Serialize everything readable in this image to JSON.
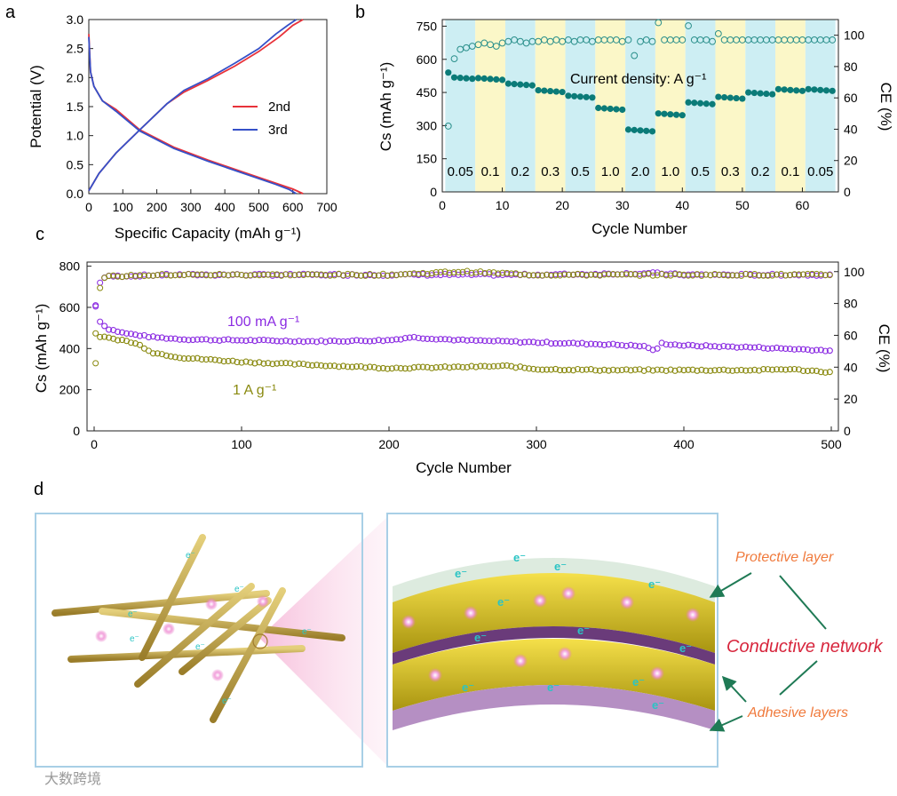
{
  "panels": {
    "a": {
      "letter": "a"
    },
    "b": {
      "letter": "b"
    },
    "c": {
      "letter": "c"
    },
    "d": {
      "letter": "d"
    }
  },
  "chart_data": [
    {
      "id": "a",
      "type": "line",
      "title": "",
      "xlabel": "Specific Capacity (mAh g⁻¹)",
      "ylabel": "Potential (V)",
      "xlim": [
        0,
        700
      ],
      "ylim": [
        0,
        3.0
      ],
      "xticks": [
        0,
        100,
        200,
        300,
        400,
        500,
        600,
        700
      ],
      "yticks": [
        0.0,
        0.5,
        1.0,
        1.5,
        2.0,
        2.5,
        3.0
      ],
      "legend": [
        "2nd",
        "3rd"
      ],
      "series": [
        {
          "name": "2nd",
          "color": "#e8323a",
          "discharge": {
            "x": [
              0,
              5,
              15,
              40,
              80,
              150,
              250,
              350,
              450,
              550,
              600,
              630
            ],
            "y": [
              2.75,
              2.1,
              1.85,
              1.6,
              1.45,
              1.1,
              0.8,
              0.58,
              0.38,
              0.18,
              0.08,
              0.0
            ]
          },
          "charge": {
            "x": [
              0,
              30,
              80,
              150,
              230,
              280,
              350,
              430,
              500,
              560,
              600,
              630
            ],
            "y": [
              0.05,
              0.35,
              0.7,
              1.1,
              1.55,
              1.75,
              1.95,
              2.2,
              2.45,
              2.7,
              2.9,
              3.0
            ]
          }
        },
        {
          "name": "3rd",
          "color": "#3550c8",
          "discharge": {
            "x": [
              0,
              5,
              15,
              40,
              80,
              150,
              250,
              350,
              450,
              550,
              590,
              610
            ],
            "y": [
              2.7,
              2.1,
              1.85,
              1.6,
              1.42,
              1.08,
              0.78,
              0.56,
              0.36,
              0.16,
              0.07,
              0.0
            ]
          },
          "charge": {
            "x": [
              0,
              30,
              80,
              150,
              230,
              280,
              350,
              430,
              500,
              550,
              585,
              610
            ],
            "y": [
              0.05,
              0.35,
              0.7,
              1.1,
              1.55,
              1.78,
              1.98,
              2.25,
              2.5,
              2.75,
              2.9,
              3.0
            ]
          }
        }
      ]
    },
    {
      "id": "b",
      "type": "scatter",
      "title": "",
      "xlabel": "Cycle Number",
      "ylabel_left": "Cs (mAh g⁻¹)",
      "ylabel_right": "CE (%)",
      "xlim": [
        0,
        66
      ],
      "ylim_left": [
        0,
        780
      ],
      "ylim_right": [
        0,
        110
      ],
      "xticks": [
        0,
        10,
        20,
        30,
        40,
        50,
        60
      ],
      "yticks_left": [
        0,
        150,
        300,
        450,
        600,
        750
      ],
      "yticks_right": [
        0,
        20,
        40,
        60,
        80,
        100
      ],
      "annotation": "Current density: A g⁻¹",
      "rate_labels": [
        "0.05",
        "0.1",
        "0.2",
        "0.3",
        "0.5",
        "1.0",
        "2.0",
        "1.0",
        "0.5",
        "0.3",
        "0.2",
        "0.1",
        "0.05"
      ],
      "capacity_levels": [
        520,
        515,
        490,
        460,
        435,
        380,
        282,
        355,
        405,
        430,
        450,
        465,
        465
      ],
      "first_capacity": 540,
      "ce_values": [
        42,
        85,
        91,
        92,
        93,
        94,
        95,
        94,
        93,
        95,
        96,
        97,
        96,
        95,
        96,
        96,
        97,
        96,
        97,
        96,
        97,
        96,
        97,
        97,
        96,
        97,
        97,
        97,
        97,
        96,
        97,
        87,
        96,
        97,
        96,
        108,
        97,
        97,
        97,
        97,
        106,
        97,
        97,
        97,
        96,
        101,
        97,
        97,
        97,
        97,
        97,
        97,
        97,
        97,
        97,
        97,
        97,
        97,
        97,
        97,
        97,
        97,
        97,
        97,
        97
      ],
      "series_colors": {
        "capacity": "#0b7b78",
        "ce": "#2a8f8b"
      },
      "band_colors": [
        "#cdeef3",
        "#fbf7c8"
      ]
    },
    {
      "id": "c",
      "type": "scatter",
      "title": "",
      "xlabel": "Cycle Number",
      "ylabel_left": "Cs (mAh g⁻¹)",
      "ylabel_right": "CE (%)",
      "xlim": [
        0,
        500
      ],
      "ylim_left": [
        0,
        820
      ],
      "ylim_right": [
        0,
        106
      ],
      "xticks": [
        0,
        100,
        200,
        300,
        400,
        500
      ],
      "yticks_left": [
        0,
        200,
        400,
        600,
        800
      ],
      "yticks_right": [
        0,
        20,
        40,
        60,
        80,
        100
      ],
      "series": [
        {
          "name": "100 mA g⁻¹",
          "color": "#8b2be2",
          "capacity": {
            "x": [
              1,
              2,
              5,
              10,
              20,
              40,
              60,
              100,
              150,
              200,
              215,
              250,
              300,
              350,
              375,
              380,
              385,
              400,
              450,
              500
            ],
            "y": [
              610,
              560,
              520,
              495,
              475,
              455,
              445,
              440,
              435,
              440,
              455,
              440,
              430,
              420,
              410,
              385,
              425,
              415,
              405,
              390
            ]
          },
          "ce": {
            "x": [
              1,
              3,
              6,
              10,
              50,
              100,
              200,
              300,
              380,
              400,
              500
            ],
            "y": [
              78,
              92,
              96,
              97,
              98,
              98,
              98,
              98,
              99,
              98,
              98
            ]
          }
        },
        {
          "name": "1 A g⁻¹",
          "color": "#8a8a10",
          "capacity": {
            "x": [
              1,
              3,
              10,
              20,
              30,
              40,
              60,
              100,
              150,
              200,
              250,
              280,
              300,
              350,
              400,
              450,
              470,
              500
            ],
            "y": [
              470,
              460,
              450,
              440,
              420,
              380,
              355,
              335,
              320,
              305,
              310,
              315,
              300,
              295,
              295,
              295,
              300,
              285
            ]
          },
          "ce": {
            "x": [
              1,
              3,
              6,
              10,
              50,
              100,
              200,
              250,
              300,
              400,
              500
            ],
            "y": [
              42,
              88,
              95,
              97,
              98,
              98,
              98,
              100,
              98,
              98,
              98
            ]
          }
        }
      ]
    }
  ],
  "panel_d": {
    "callouts": {
      "protective": "Protective layer",
      "conductive": "Conductive network",
      "adhesive": "Adhesive layers"
    },
    "electron_label": "e⁻"
  },
  "watermark": "大数跨境",
  "colors": {
    "frame": "#a8cfe6",
    "callout_orange": "#f07a3c",
    "callout_red": "#d7263d",
    "arrow_green": "#1f7a55",
    "fiber": "#c9aa4a",
    "electron": "#2ac4c4",
    "ion": "#ef6fc6"
  }
}
